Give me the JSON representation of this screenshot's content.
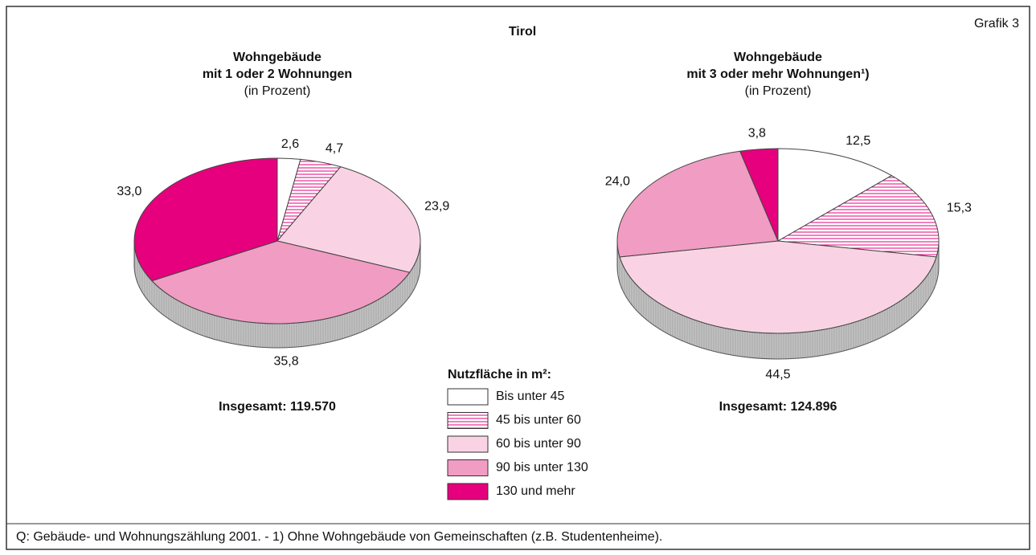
{
  "title": "Tirol",
  "label": "Grafik 3",
  "legend": {
    "title": "Nutzfläche in m²:",
    "categories": [
      "Bis unter 45",
      "45 bis unter 60",
      "60 bis unter 90",
      "90 bis unter 130",
      "130 und mehr"
    ],
    "colors": [
      "#ffffff",
      "#ffffff",
      "#f9d3e4",
      "#f19cc3",
      "#e6007e"
    ],
    "hatch": [
      false,
      true,
      false,
      false,
      false
    ],
    "hatch_color": "#e6007e"
  },
  "chart_data": [
    {
      "type": "pie",
      "title": [
        "Wohngebäude",
        "mit 1 oder 2 Wohnungen"
      ],
      "subtitle": "(in Prozent)",
      "values": [
        2.6,
        4.7,
        23.9,
        35.8,
        33.0
      ],
      "value_labels": [
        "2,6",
        "4,7",
        "23,9",
        "35,8",
        "33,0"
      ],
      "total": "Insgesamt: 119.570"
    },
    {
      "type": "pie",
      "title": [
        "Wohngebäude",
        "mit 3 oder mehr  Wohnungen¹)"
      ],
      "subtitle": "(in Prozent)",
      "values": [
        12.5,
        15.3,
        44.5,
        24.0,
        3.8
      ],
      "value_labels": [
        "12,5",
        "15,3",
        "44,5",
        "24,0",
        "3,8"
      ],
      "total": "Insgesamt: 124.896"
    }
  ],
  "source": "Q: Gebäude- und Wohnungszählung 2001. - 1) Ohne Wohngebäude von Gemeinschaften (z.B. Studentenheime)."
}
